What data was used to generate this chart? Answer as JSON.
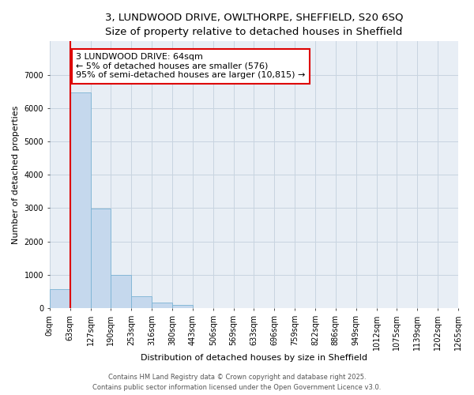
{
  "title_line1": "3, LUNDWOOD DRIVE, OWLTHORPE, SHEFFIELD, S20 6SQ",
  "title_line2": "Size of property relative to detached houses in Sheffield",
  "xlabel": "Distribution of detached houses by size in Sheffield",
  "ylabel": "Number of detached properties",
  "bar_values": [
    580,
    6480,
    2990,
    1000,
    370,
    160,
    100,
    0,
    0,
    0,
    0,
    0,
    0,
    0,
    0,
    0,
    0,
    0,
    0,
    0
  ],
  "bar_color": "#c5d8ed",
  "bar_edge_color": "#7ab3d4",
  "x_labels": [
    "0sqm",
    "63sqm",
    "127sqm",
    "190sqm",
    "253sqm",
    "316sqm",
    "380sqm",
    "443sqm",
    "506sqm",
    "569sqm",
    "633sqm",
    "696sqm",
    "759sqm",
    "822sqm",
    "886sqm",
    "949sqm",
    "1012sqm",
    "1075sqm",
    "1139sqm",
    "1202sqm",
    "1265sqm"
  ],
  "ylim": [
    0,
    8000
  ],
  "yticks": [
    0,
    1000,
    2000,
    3000,
    4000,
    5000,
    6000,
    7000
  ],
  "annotation_text": "3 LUNDWOOD DRIVE: 64sqm\n← 5% of detached houses are smaller (576)\n95% of semi-detached houses are larger (10,815) →",
  "annotation_box_color": "#dd0000",
  "annotation_bg_color": "#ffffff",
  "red_line_bar_index": 1,
  "grid_color": "#c8d4e0",
  "bg_color": "#e8eef5",
  "footer_line1": "Contains HM Land Registry data © Crown copyright and database right 2025.",
  "footer_line2": "Contains public sector information licensed under the Open Government Licence v3.0.",
  "title_fontsize": 9.5,
  "subtitle_fontsize": 9,
  "axis_label_fontsize": 8,
  "tick_fontsize": 7,
  "annotation_fontsize": 8,
  "footer_fontsize": 6
}
